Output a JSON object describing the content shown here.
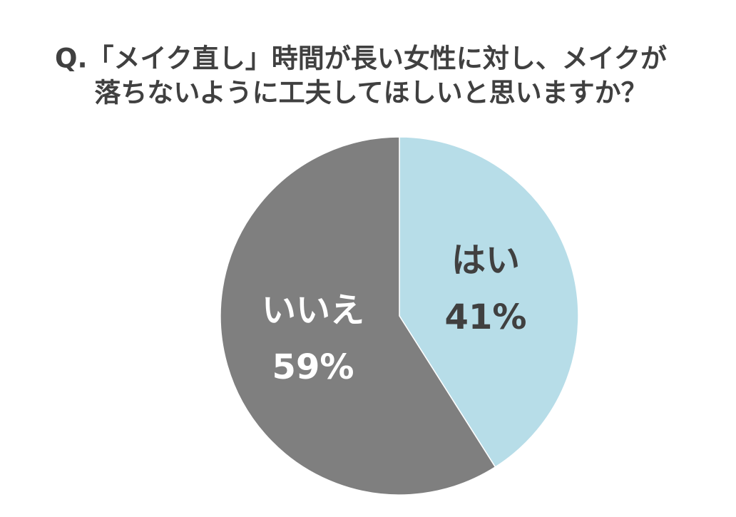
{
  "chart_data": {
    "type": "pie",
    "title": [
      "Q.「メイク直し」時間が長い女性に対し、メイクが",
      "落ちないように工夫してほしいと思いますか？"
    ],
    "categories": [
      "はい",
      "いいえ"
    ],
    "values": [
      41,
      59
    ],
    "value_labels": [
      "41%",
      "59%"
    ],
    "colors": [
      "#b7dde8",
      "#7f7f7f"
    ]
  }
}
